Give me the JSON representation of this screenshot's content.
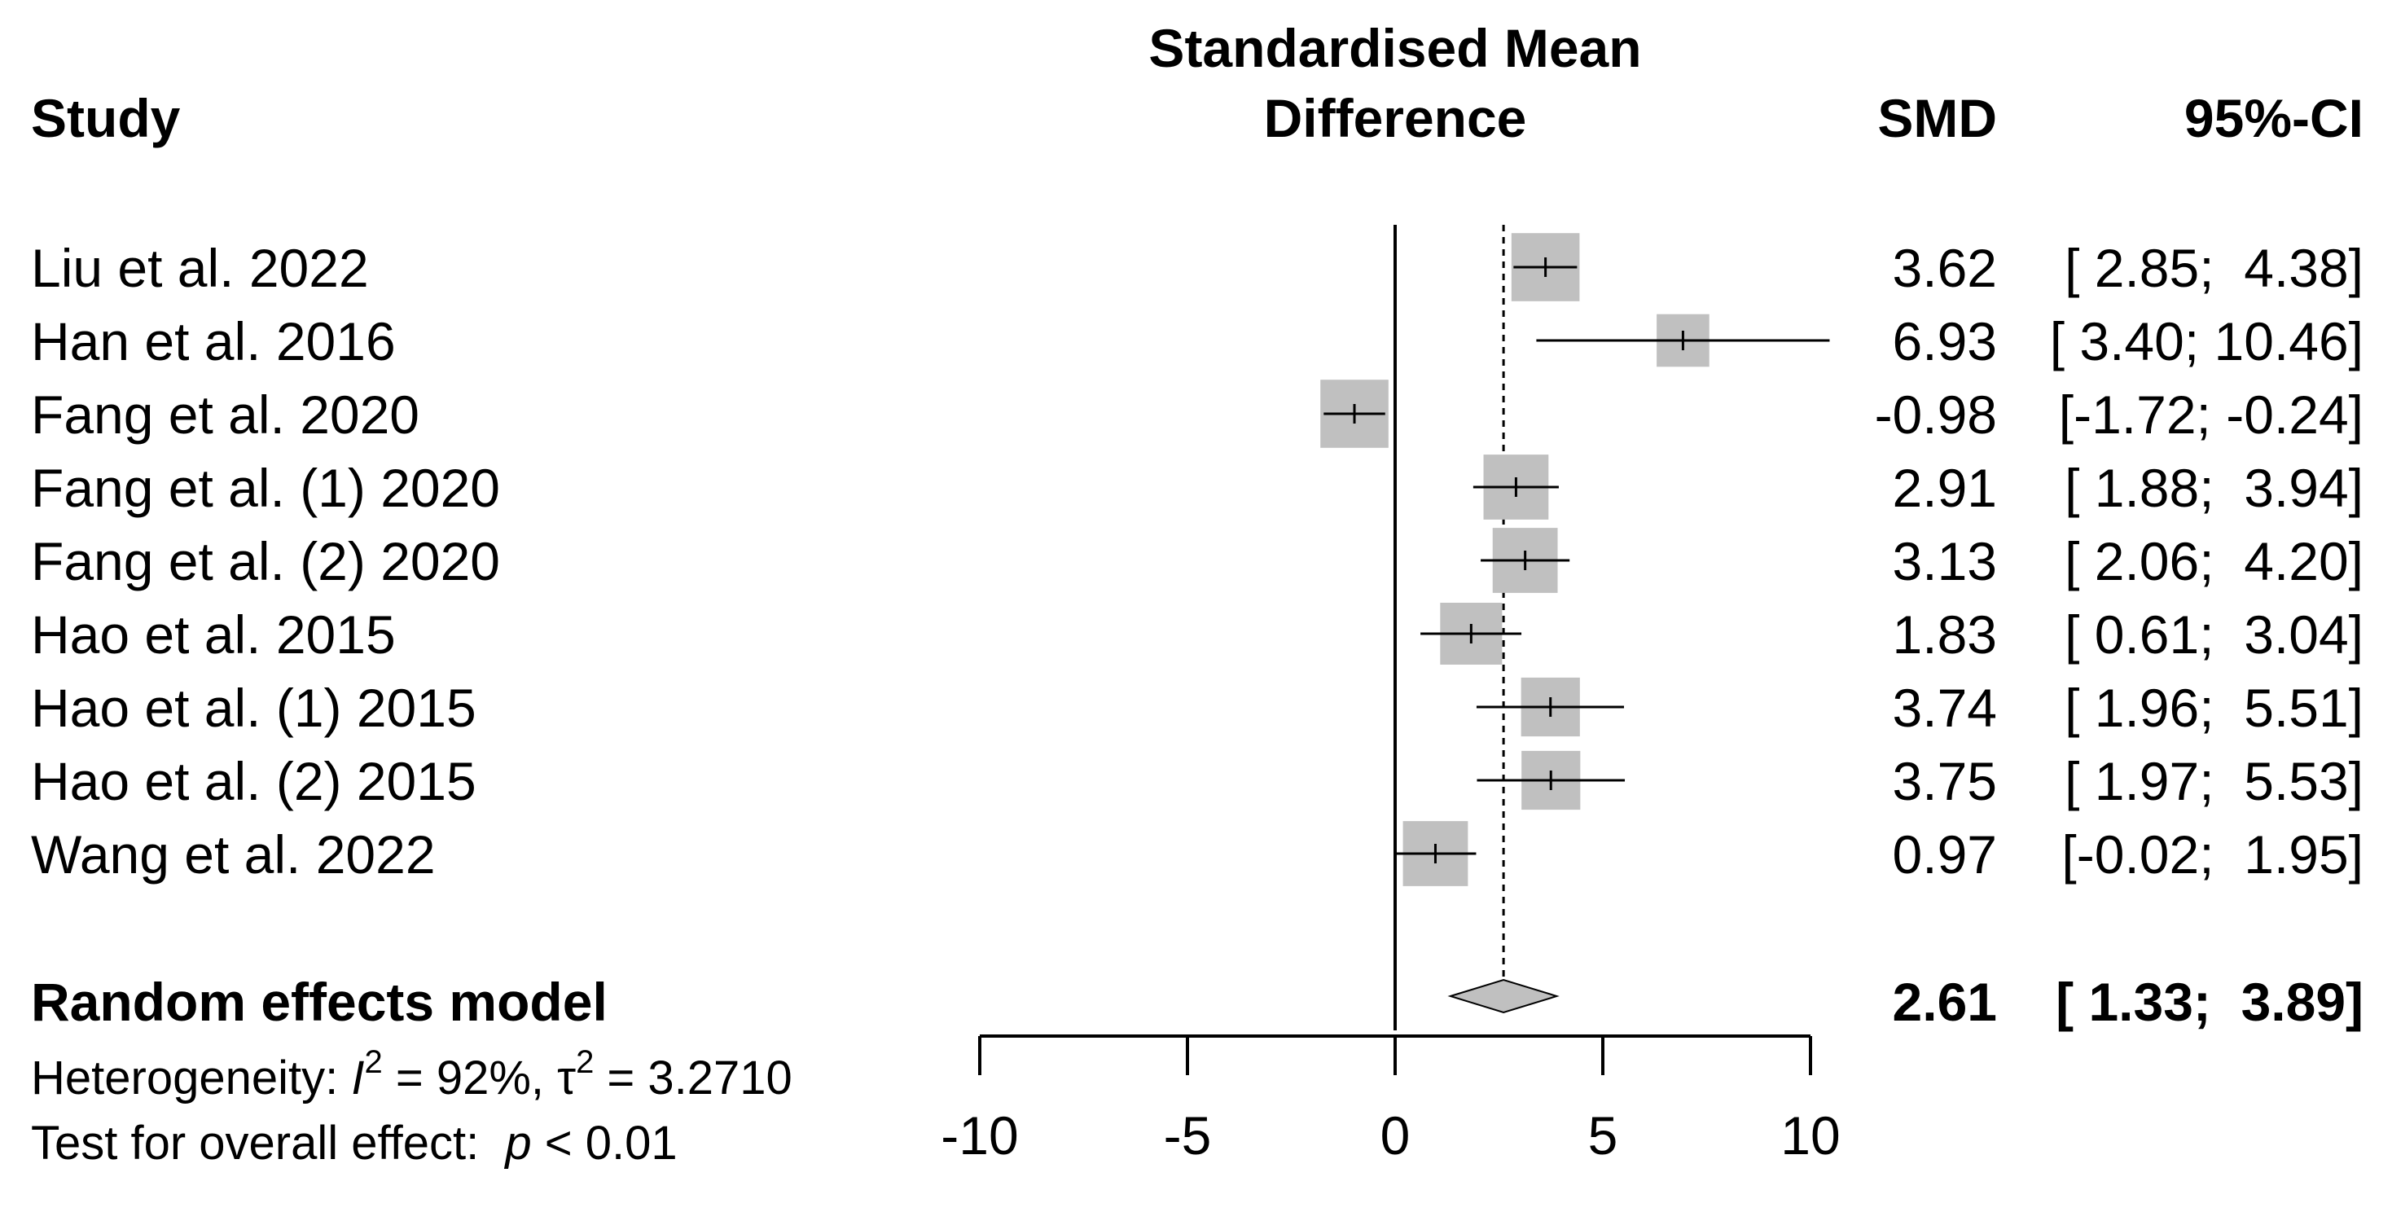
{
  "headers": {
    "study": "Study",
    "plot_line1": "Standardised Mean",
    "plot_line2": "Difference",
    "smd": "SMD",
    "ci": "95%-CI"
  },
  "pooled": {
    "label": "Random effects model",
    "smd": "2.61",
    "ci": "[ 1.33;  3.89]"
  },
  "heterogeneity": {
    "prefix": "Heterogeneity: ",
    "i2_symbol": "I",
    "i2_value": " = 92%, ",
    "tau_symbol": "τ",
    "tau_value": " = 3.2710"
  },
  "overall_test": {
    "prefix": "Test for overall effect:  ",
    "p_symbol": "p",
    "p_value": " < 0.01"
  },
  "colors": {
    "box_fill": "#c0c0c0",
    "diamond_fill": "#c0c0c0",
    "line": "#000000"
  },
  "chart_data": {
    "type": "forest",
    "measure": "Standardised Mean Difference",
    "xlim": [
      -10,
      10
    ],
    "xticks": [
      -10,
      -5,
      0,
      5,
      10
    ],
    "xtick_labels": [
      "-10",
      "-5",
      "0",
      "5",
      "10"
    ],
    "reference_line": 0,
    "pooled_line": 2.61,
    "studies": [
      {
        "name": "Liu et al. 2022",
        "smd": 3.62,
        "lower": 2.85,
        "upper": 4.38,
        "smd_text": "3.62",
        "ci_text": "[ 2.85;  4.38]",
        "box": 1.1
      },
      {
        "name": "Han et al. 2016",
        "smd": 6.93,
        "lower": 3.4,
        "upper": 10.46,
        "smd_text": "6.93",
        "ci_text": "[ 3.40; 10.46]",
        "box": 0.85
      },
      {
        "name": "Fang et al. 2020",
        "smd": -0.98,
        "lower": -1.72,
        "upper": -0.24,
        "smd_text": "-0.98",
        "ci_text": "[-1.72; -0.24]",
        "box": 1.1
      },
      {
        "name": "Fang et al. (1) 2020",
        "smd": 2.91,
        "lower": 1.88,
        "upper": 3.94,
        "smd_text": "2.91",
        "ci_text": "[ 1.88;  3.94]",
        "box": 1.05
      },
      {
        "name": "Fang et al. (2) 2020",
        "smd": 3.13,
        "lower": 2.06,
        "upper": 4.2,
        "smd_text": "3.13",
        "ci_text": "[ 2.06;  4.20]",
        "box": 1.05
      },
      {
        "name": "Hao et al. 2015",
        "smd": 1.83,
        "lower": 0.61,
        "upper": 3.04,
        "smd_text": "1.83",
        "ci_text": "[ 0.61;  3.04]",
        "box": 1.0
      },
      {
        "name": "Hao et al. (1) 2015",
        "smd": 3.74,
        "lower": 1.96,
        "upper": 5.51,
        "smd_text": "3.74",
        "ci_text": "[ 1.96;  5.51]",
        "box": 0.95
      },
      {
        "name": "Hao et al. (2) 2015",
        "smd": 3.75,
        "lower": 1.97,
        "upper": 5.53,
        "smd_text": "3.75",
        "ci_text": "[ 1.97;  5.53]",
        "box": 0.95
      },
      {
        "name": "Wang et al. 2022",
        "smd": 0.97,
        "lower": -0.02,
        "upper": 1.95,
        "smd_text": "0.97",
        "ci_text": "[-0.02;  1.95]",
        "box": 1.05
      }
    ],
    "pooled": {
      "smd": 2.61,
      "lower": 1.33,
      "upper": 3.89
    }
  }
}
